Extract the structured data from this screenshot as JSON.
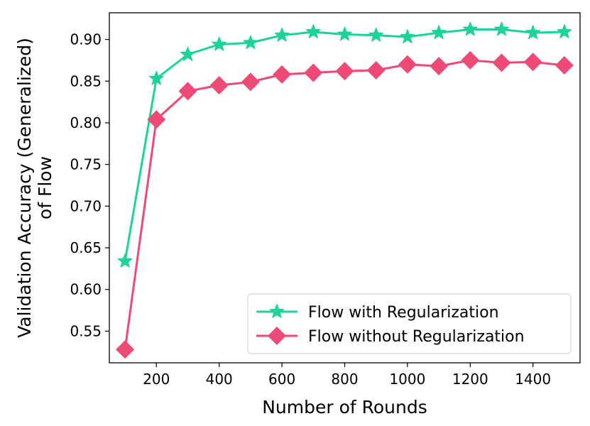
{
  "chart_data": {
    "type": "line",
    "title": "",
    "xlabel": "Number of Rounds",
    "ylabel_line1": "Validation Accuracy (Generalized)",
    "ylabel_line2": "of Flow",
    "x": [
      100,
      200,
      300,
      400,
      500,
      600,
      700,
      800,
      900,
      1000,
      1100,
      1200,
      1300,
      1400,
      1500
    ],
    "xticks": [
      200,
      400,
      600,
      800,
      1000,
      1200,
      1400
    ],
    "yticks": [
      0.55,
      0.6,
      0.65,
      0.7,
      0.75,
      0.8,
      0.85,
      0.9
    ],
    "xlim": [
      50,
      1550
    ],
    "ylim": [
      0.512,
      0.932
    ],
    "grid": false,
    "legend_position": "bottom-right",
    "series": [
      {
        "name": "Flow with Regularization",
        "color": "#1ed39a",
        "marker": "star",
        "values": [
          0.634,
          0.853,
          0.882,
          0.894,
          0.896,
          0.905,
          0.909,
          0.906,
          0.905,
          0.903,
          0.908,
          0.912,
          0.912,
          0.908,
          0.909
        ]
      },
      {
        "name": "Flow without Regularization",
        "color": "#ee4a76",
        "marker": "diamond",
        "values": [
          0.528,
          0.804,
          0.838,
          0.845,
          0.849,
          0.858,
          0.86,
          0.862,
          0.863,
          0.87,
          0.868,
          0.875,
          0.872,
          0.873,
          0.869
        ]
      }
    ]
  }
}
